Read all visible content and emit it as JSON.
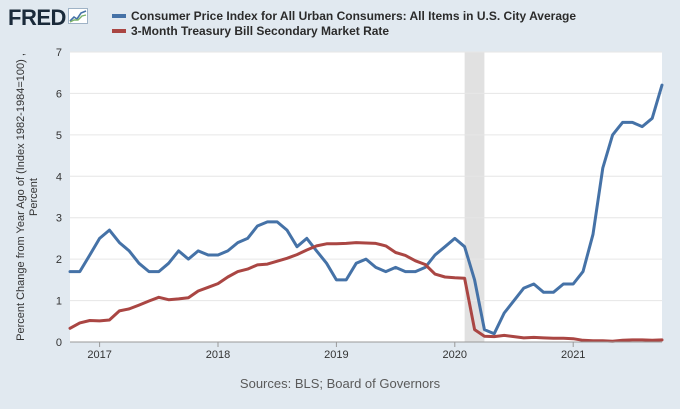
{
  "header": {
    "logo_text": "FRED",
    "logo_icon": "trend-chart-icon"
  },
  "colors": {
    "background": "#e1e9f0",
    "plot_bg": "#ffffff",
    "series_cpi": "#4572a7",
    "series_tbill": "#aa4643",
    "recession": "#e1e1e1",
    "grid": "#e6e6e6"
  },
  "legend": {
    "cpi_label": "Consumer Price Index for All Urban Consumers: All Items in U.S. City Average",
    "tbill_label": "3-Month Treasury Bill Secondary Market Rate"
  },
  "footer": {
    "sources": "Sources: BLS; Board of Governors"
  },
  "chart_data": {
    "type": "line",
    "title": "",
    "xlabel": "",
    "ylabel": "Percent Change from Year Ago of (Index 1982-1984=100) , Percent",
    "ylim": [
      0,
      7
    ],
    "xlim": [
      2016.75,
      2021.75
    ],
    "yticks": [
      0,
      1,
      2,
      3,
      4,
      5,
      6,
      7
    ],
    "xticks": [
      {
        "value": 2017,
        "label": "2017"
      },
      {
        "value": 2018,
        "label": "2018"
      },
      {
        "value": 2019,
        "label": "2019"
      },
      {
        "value": 2020,
        "label": "2020"
      },
      {
        "value": 2021,
        "label": "2021"
      }
    ],
    "grid": true,
    "recession": {
      "start": 2020.083,
      "end": 2020.25
    },
    "series": [
      {
        "name": "Consumer Price Index for All Urban Consumers: All Items in U.S. City Average",
        "color": "#4572a7",
        "x": [
          2016.75,
          2016.833,
          2016.917,
          2017.0,
          2017.083,
          2017.167,
          2017.25,
          2017.333,
          2017.417,
          2017.5,
          2017.583,
          2017.667,
          2017.75,
          2017.833,
          2017.917,
          2018.0,
          2018.083,
          2018.167,
          2018.25,
          2018.333,
          2018.417,
          2018.5,
          2018.583,
          2018.667,
          2018.75,
          2018.833,
          2018.917,
          2019.0,
          2019.083,
          2019.167,
          2019.25,
          2019.333,
          2019.417,
          2019.5,
          2019.583,
          2019.667,
          2019.75,
          2019.833,
          2019.917,
          2020.0,
          2020.083,
          2020.167,
          2020.25,
          2020.333,
          2020.417,
          2020.5,
          2020.583,
          2020.667,
          2020.75,
          2020.833,
          2020.917,
          2021.0,
          2021.083,
          2021.167,
          2021.25,
          2021.333,
          2021.417,
          2021.5,
          2021.583,
          2021.667,
          2021.75
        ],
        "y": [
          1.7,
          1.7,
          2.1,
          2.5,
          2.7,
          2.4,
          2.2,
          1.9,
          1.7,
          1.7,
          1.9,
          2.2,
          2.0,
          2.2,
          2.1,
          2.1,
          2.2,
          2.4,
          2.5,
          2.8,
          2.9,
          2.9,
          2.7,
          2.3,
          2.5,
          2.2,
          1.9,
          1.5,
          1.5,
          1.9,
          2.0,
          1.8,
          1.7,
          1.8,
          1.7,
          1.7,
          1.8,
          2.1,
          2.3,
          2.5,
          2.3,
          1.5,
          0.3,
          0.2,
          0.7,
          1.0,
          1.3,
          1.4,
          1.2,
          1.2,
          1.4,
          1.4,
          1.7,
          2.6,
          4.2,
          5.0,
          5.3,
          5.3,
          5.2,
          5.4,
          6.2
        ]
      },
      {
        "name": "3-Month Treasury Bill Secondary Market Rate",
        "color": "#aa4643",
        "x": [
          2016.75,
          2016.833,
          2016.917,
          2017.0,
          2017.083,
          2017.167,
          2017.25,
          2017.333,
          2017.417,
          2017.5,
          2017.583,
          2017.667,
          2017.75,
          2017.833,
          2017.917,
          2018.0,
          2018.083,
          2018.167,
          2018.25,
          2018.333,
          2018.417,
          2018.5,
          2018.583,
          2018.667,
          2018.75,
          2018.833,
          2018.917,
          2019.0,
          2019.083,
          2019.167,
          2019.25,
          2019.333,
          2019.417,
          2019.5,
          2019.583,
          2019.667,
          2019.75,
          2019.833,
          2019.917,
          2020.0,
          2020.083,
          2020.167,
          2020.25,
          2020.333,
          2020.417,
          2020.5,
          2020.583,
          2020.667,
          2020.75,
          2020.833,
          2020.917,
          2021.0,
          2021.083,
          2021.167,
          2021.25,
          2021.333,
          2021.417,
          2021.5,
          2021.583,
          2021.667,
          2021.75
        ],
        "y": [
          0.33,
          0.46,
          0.52,
          0.51,
          0.53,
          0.75,
          0.8,
          0.89,
          0.99,
          1.08,
          1.02,
          1.04,
          1.07,
          1.23,
          1.32,
          1.41,
          1.57,
          1.7,
          1.76,
          1.86,
          1.88,
          1.95,
          2.02,
          2.11,
          2.22,
          2.32,
          2.37,
          2.37,
          2.38,
          2.4,
          2.39,
          2.38,
          2.32,
          2.16,
          2.09,
          1.96,
          1.87,
          1.64,
          1.57,
          1.55,
          1.54,
          0.3,
          0.14,
          0.13,
          0.16,
          0.13,
          0.1,
          0.11,
          0.1,
          0.09,
          0.09,
          0.08,
          0.04,
          0.03,
          0.03,
          0.02,
          0.04,
          0.05,
          0.05,
          0.04,
          0.05
        ]
      }
    ]
  }
}
